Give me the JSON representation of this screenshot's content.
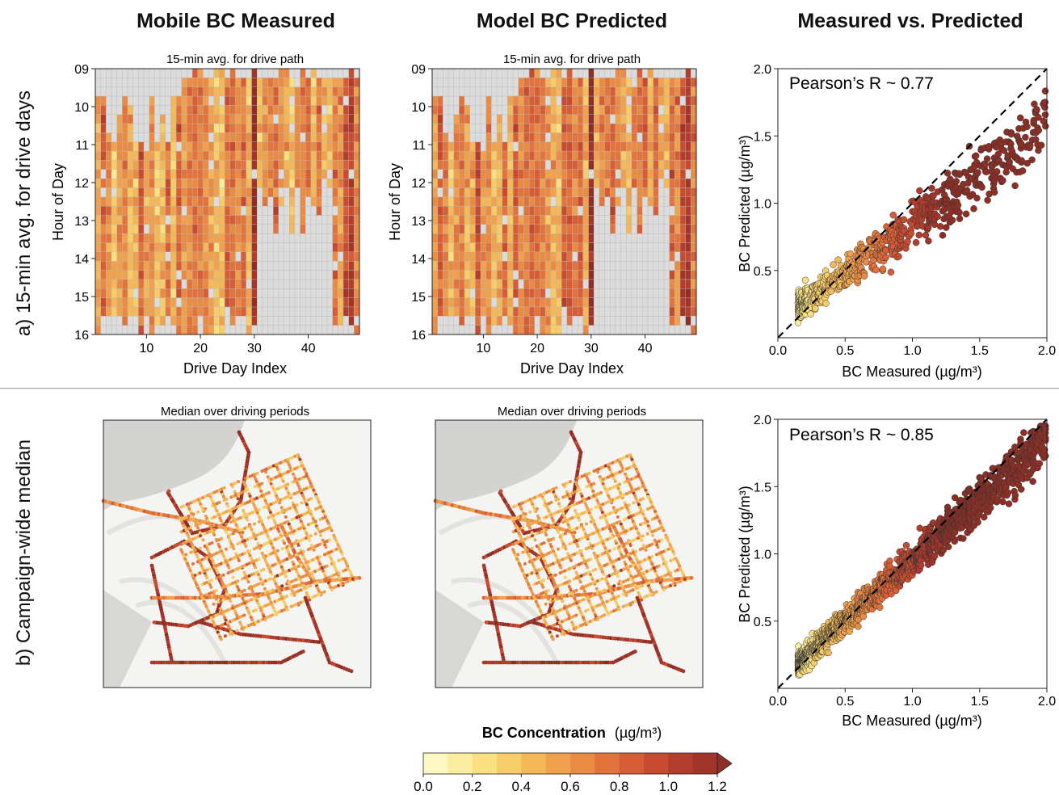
{
  "column_titles": [
    "Mobile BC Measured",
    "Model BC Predicted",
    "Measured vs. Predicted"
  ],
  "row_titles": [
    "a)  15-min avg. for drive days",
    "b)  Campaign-wide median"
  ],
  "heatmap_subtitle": "15-min avg. for drive path",
  "map_subtitle": "Median over driving periods",
  "colorbar": {
    "title": "BC Concentration",
    "unit": "(µg/m³)",
    "ticks": [
      "0.0",
      "0.2",
      "0.4",
      "0.6",
      "0.8",
      "1.0",
      "1.2"
    ],
    "colors": [
      "#fdf8c2",
      "#fbeda0",
      "#f9e081",
      "#f6cd68",
      "#f3b858",
      "#efa14d",
      "#ea8b44",
      "#e2733c",
      "#d65d35",
      "#c64b30",
      "#b23d2c",
      "#a13529",
      "#8e2f26"
    ]
  },
  "chart_data": [
    {
      "type": "heatmap",
      "title": "15-min avg. for drive path",
      "xlabel": "Drive Day Index",
      "ylabel": "Hour of Day",
      "x_ticks": [
        "10",
        "20",
        "30",
        "40"
      ],
      "y_ticks": [
        "09",
        "10",
        "11",
        "12",
        "13",
        "14",
        "15",
        "16"
      ],
      "n_days": 49,
      "n_slots": 29,
      "value_range": [
        0,
        1.2
      ],
      "missing_color": "#dcdcdc"
    },
    {
      "type": "heatmap",
      "title": "15-min avg. for drive path",
      "xlabel": "Drive Day Index",
      "ylabel": "Hour of Day",
      "x_ticks": [
        "10",
        "20",
        "30",
        "40"
      ],
      "y_ticks": [
        "09",
        "10",
        "11",
        "12",
        "13",
        "14",
        "15",
        "16"
      ],
      "n_days": 49,
      "n_slots": 29,
      "value_range": [
        0,
        1.2
      ],
      "missing_color": "#dcdcdc"
    },
    {
      "type": "scatter",
      "xlabel": "BC Measured (µg/m³)",
      "ylabel": "BC Predicted (µg/m³)",
      "annotation": "Pearson’s R ~ 0.77",
      "xlim": [
        0,
        2.0
      ],
      "ylim": [
        0,
        2.0
      ],
      "x_ticks": [
        "0.0",
        "0.5",
        "1.0",
        "1.5",
        "2.0"
      ],
      "y_ticks": [
        "0.5",
        "1.0",
        "1.5",
        "2.0"
      ],
      "identity_line": true,
      "pearson_r": 0.77
    },
    {
      "type": "scatter",
      "xlabel": "BC Measured (µg/m³)",
      "ylabel": "BC Predicted (µg/m³)",
      "annotation": "Pearson’s R ~ 0.85",
      "xlim": [
        0,
        2.0
      ],
      "ylim": [
        0,
        2.0
      ],
      "x_ticks": [
        "0.0",
        "0.5",
        "1.0",
        "1.5",
        "2.0"
      ],
      "y_ticks": [
        "0.5",
        "1.0",
        "1.5",
        "2.0"
      ],
      "identity_line": true,
      "pearson_r": 0.85
    }
  ]
}
